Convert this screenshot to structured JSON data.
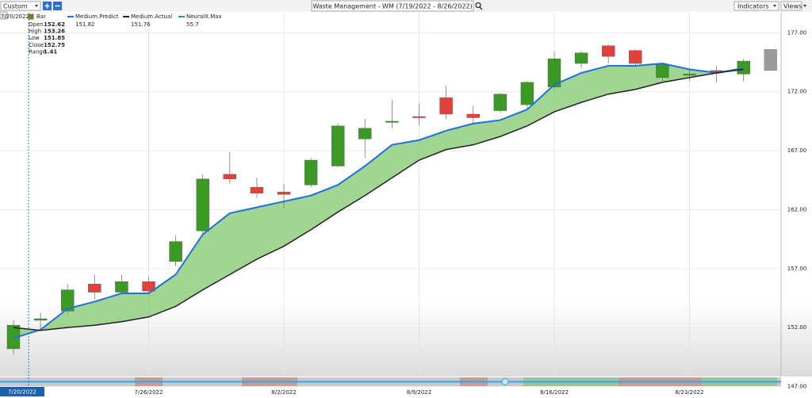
{
  "toolbar": {
    "preset": "Custom",
    "indicators": "Indicators",
    "views": "Views"
  },
  "chart_data": {
    "type": "candlestick",
    "title": "Waste Management - WM (7/19/2022 - 8/26/2022)",
    "categories": [
      null,
      null,
      null,
      null,
      null,
      "7/26/2022",
      null,
      null,
      null,
      null,
      "8/2/2022",
      null,
      null,
      null,
      null,
      "8/9/2022",
      null,
      null,
      null,
      null,
      "8/16/2022",
      null,
      null,
      null,
      null,
      "8/23/2022",
      null,
      null,
      null
    ],
    "candles": {
      "name": "Bar",
      "up_color": "#3a9a23",
      "down_color": "#e2413b",
      "projection_color": "#9a9a9a",
      "open": [
        150.2,
        152.62,
        153.4,
        155.7,
        155.0,
        155.9,
        157.6,
        160.2,
        165.0,
        163.9,
        163.5,
        164.1,
        165.7,
        168.0,
        169.5,
        169.9,
        171.5,
        170.1,
        170.4,
        170.9,
        172.4,
        174.4,
        175.9,
        175.5,
        173.2,
        173.5,
        173.8,
        173.5,
        173.8
      ],
      "high": [
        152.6,
        153.26,
        155.7,
        156.5,
        156.5,
        156.3,
        159.8,
        165.0,
        166.9,
        164.7,
        164.2,
        166.4,
        169.3,
        169.7,
        171.3,
        171.0,
        172.5,
        170.8,
        171.9,
        172.9,
        175.4,
        175.5,
        176.0,
        175.6,
        174.4,
        173.9,
        174.2,
        174.8,
        175.6
      ],
      "low": [
        149.7,
        151.85,
        153.2,
        154.4,
        154.8,
        154.8,
        157.2,
        159.9,
        164.2,
        163.0,
        162.1,
        163.9,
        165.6,
        166.4,
        168.9,
        169.2,
        169.7,
        169.3,
        170.2,
        170.5,
        172.2,
        174.0,
        174.4,
        174.2,
        172.9,
        172.9,
        172.8,
        172.9,
        173.8
      ],
      "close": [
        152.2,
        152.75,
        155.2,
        155.0,
        155.9,
        155.1,
        159.3,
        164.6,
        164.6,
        163.4,
        163.3,
        166.2,
        169.1,
        168.9,
        169.5,
        169.8,
        170.1,
        169.8,
        171.8,
        172.8,
        174.8,
        175.3,
        175.0,
        174.4,
        174.3,
        173.5,
        173.6,
        174.6,
        175.6
      ]
    },
    "series": [
      {
        "name": "Medium.Predict",
        "color": "#1f6fe0",
        "crosshair_value": 151.82,
        "values": [
          151.1,
          151.82,
          153.6,
          154.2,
          154.9,
          154.9,
          156.5,
          159.9,
          161.7,
          162.2,
          162.7,
          163.2,
          164.1,
          165.7,
          167.5,
          167.9,
          168.7,
          169.3,
          169.6,
          170.5,
          172.6,
          173.6,
          174.2,
          174.2,
          174.4,
          173.9,
          173.6,
          174.0,
          null
        ]
      },
      {
        "name": "Medium.Actual",
        "color": "#222222",
        "crosshair_value": 151.76,
        "values": [
          152.0,
          151.76,
          152.0,
          152.2,
          152.5,
          152.9,
          153.8,
          155.2,
          156.5,
          157.8,
          158.9,
          160.3,
          161.8,
          163.2,
          164.7,
          166.2,
          167.1,
          167.5,
          168.2,
          169.1,
          170.3,
          171.1,
          171.8,
          172.2,
          172.8,
          173.2,
          173.6,
          173.9,
          null
        ]
      },
      {
        "name": "NeuralX.Max",
        "color": "#2f9e4a",
        "crosshair_value": 55.7
      }
    ],
    "fill_color": "#8fcf7e",
    "crosshair": {
      "date": "7/20/2022",
      "index": 1,
      "fields": [
        {
          "label": "Open",
          "value": 152.62
        },
        {
          "label": "High",
          "value": 153.26
        },
        {
          "label": "Low",
          "value": 151.85
        },
        {
          "label": "Close",
          "value": 152.75
        },
        {
          "label": "Range",
          "value": 1.41
        }
      ]
    },
    "ylim": [
      146.7,
      177.9
    ],
    "yticks": [
      {
        "value": 147,
        "label": "147.00"
      },
      {
        "value": 152,
        "label": "152.00"
      },
      {
        "value": 157,
        "label": "157.00"
      },
      {
        "value": 162,
        "label": "162.00"
      },
      {
        "value": 167,
        "label": "167.00"
      },
      {
        "value": 172,
        "label": "172.00"
      },
      {
        "value": 177,
        "label": "177.00"
      }
    ],
    "grid": true
  }
}
